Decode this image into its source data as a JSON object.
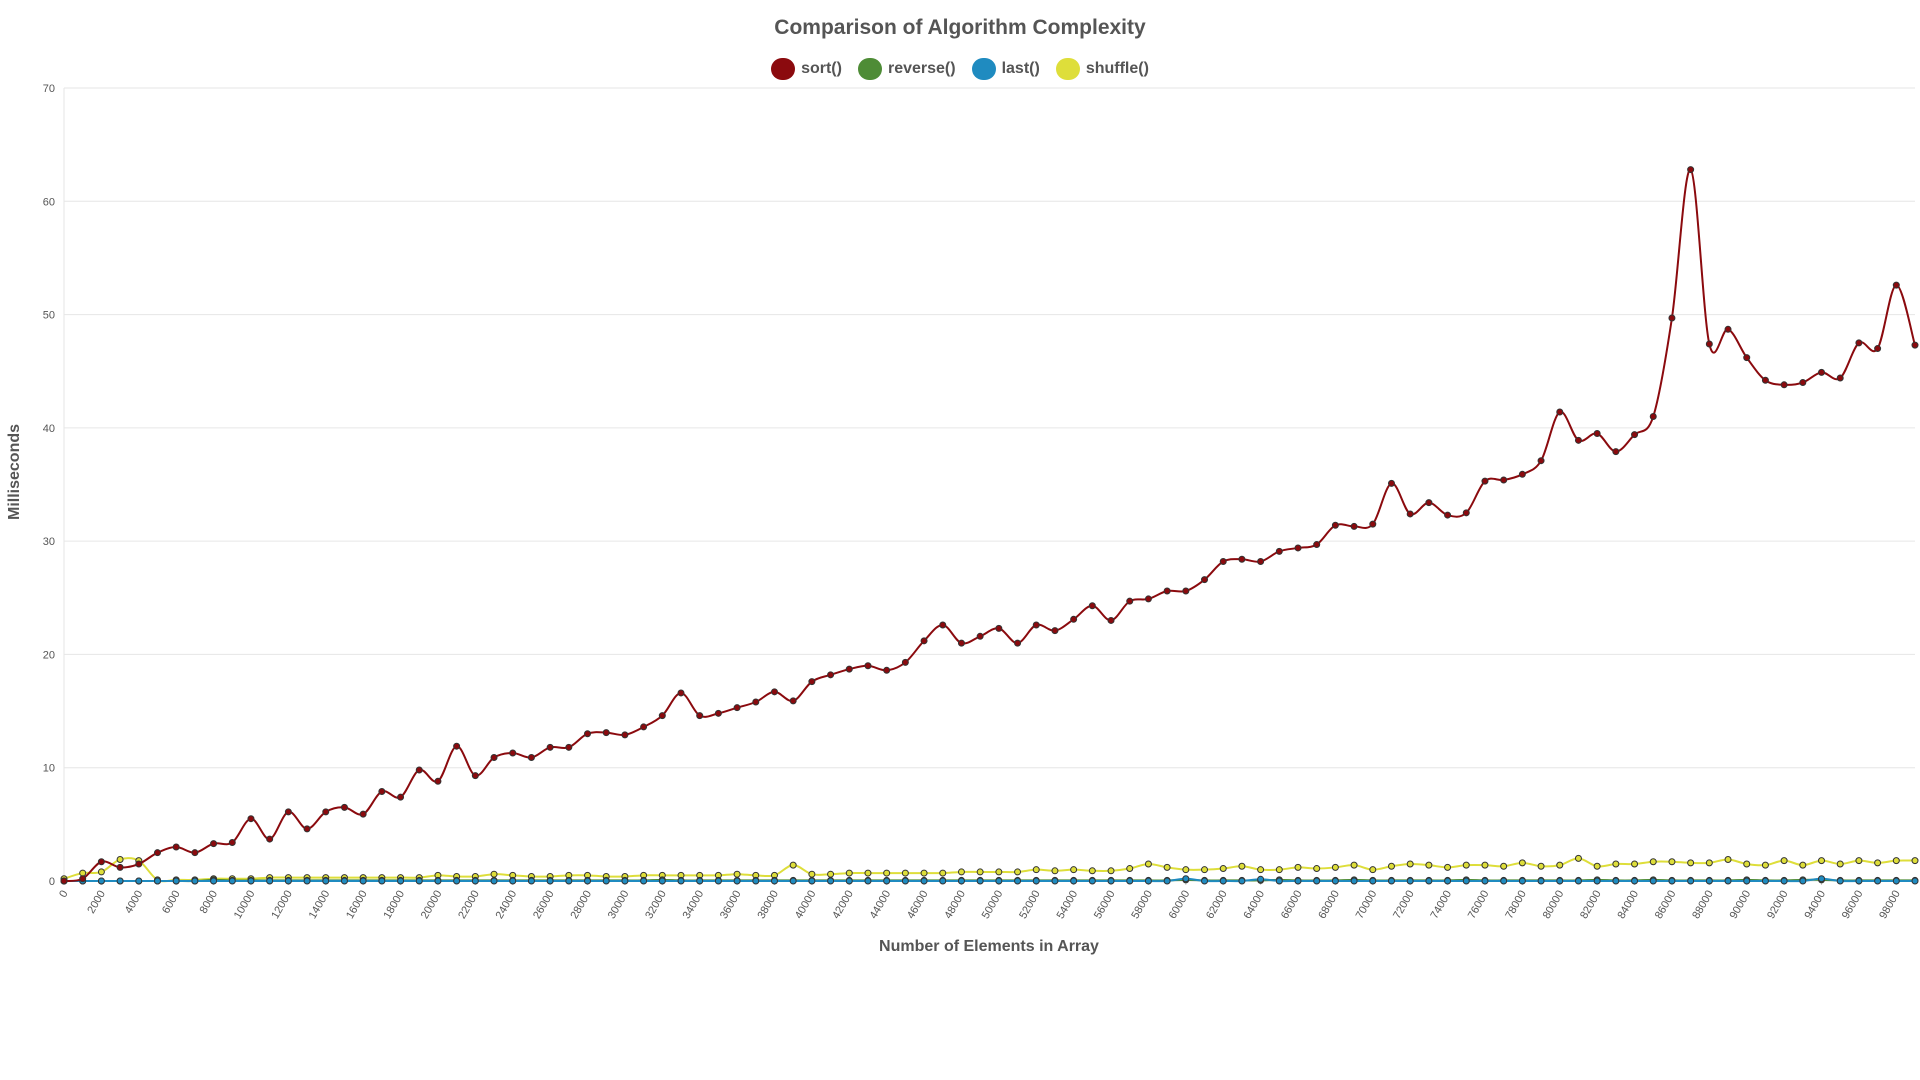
{
  "chart_data": {
    "type": "line",
    "title": "Comparison of Algorithm Complexity",
    "xlabel": "Number of Elements in Array",
    "ylabel": "Milliseconds",
    "ylim": [
      0,
      70
    ],
    "yticks": [
      "0",
      "10",
      "20",
      "30",
      "40",
      "50",
      "60",
      "70"
    ],
    "xticks": [
      "0",
      "2000",
      "4000",
      "6000",
      "8000",
      "10000",
      "12000",
      "14000",
      "16000",
      "18000",
      "20000",
      "22000",
      "24000",
      "26000",
      "28000",
      "30000",
      "32000",
      "34000",
      "36000",
      "38000",
      "40000",
      "42000",
      "44000",
      "46000",
      "48000",
      "50000",
      "52000",
      "54000",
      "56000",
      "58000",
      "60000",
      "62000",
      "64000",
      "66000",
      "68000",
      "70000",
      "72000",
      "74000",
      "76000",
      "78000",
      "80000",
      "82000",
      "84000",
      "86000",
      "88000",
      "90000",
      "92000",
      "94000",
      "96000",
      "98000"
    ],
    "x": [
      0,
      1000,
      2000,
      3000,
      4000,
      5000,
      6000,
      7000,
      8000,
      9000,
      10000,
      11000,
      12000,
      13000,
      14000,
      15000,
      16000,
      17000,
      18000,
      19000,
      20000,
      21000,
      22000,
      23000,
      24000,
      25000,
      26000,
      27000,
      28000,
      29000,
      30000,
      31000,
      32000,
      33000,
      34000,
      35000,
      36000,
      37000,
      38000,
      39000,
      40000,
      41000,
      42000,
      43000,
      44000,
      45000,
      46000,
      47000,
      48000,
      49000,
      50000,
      51000,
      52000,
      53000,
      54000,
      55000,
      56000,
      57000,
      58000,
      59000,
      60000,
      61000,
      62000,
      63000,
      64000,
      65000,
      66000,
      67000,
      68000,
      69000,
      70000,
      71000,
      72000,
      73000,
      74000,
      75000,
      76000,
      77000,
      78000,
      79000,
      80000,
      81000,
      82000,
      83000,
      84000,
      85000,
      86000,
      87000,
      88000,
      89000,
      90000,
      91000,
      92000,
      93000,
      94000,
      95000,
      96000,
      97000,
      98000,
      99000
    ],
    "grid": true,
    "legend_position": "top",
    "series": [
      {
        "name": "sort()",
        "color": "#8b0a0e",
        "values": [
          0,
          0.2,
          1.7,
          1.2,
          1.5,
          2.5,
          3.0,
          2.5,
          3.3,
          3.4,
          5.5,
          3.7,
          6.1,
          4.6,
          6.1,
          6.5,
          5.9,
          7.9,
          7.4,
          9.8,
          8.8,
          11.9,
          9.3,
          10.9,
          11.3,
          10.9,
          11.8,
          11.8,
          13.0,
          13.1,
          12.9,
          13.6,
          14.6,
          16.6,
          14.6,
          14.8,
          15.3,
          15.8,
          16.7,
          15.9,
          17.6,
          18.2,
          18.7,
          19.0,
          18.6,
          19.3,
          21.2,
          22.6,
          21.0,
          21.6,
          22.3,
          21.0,
          22.6,
          22.1,
          23.1,
          24.3,
          23.0,
          24.7,
          24.9,
          25.6,
          25.6,
          26.6,
          28.2,
          28.4,
          28.2,
          29.1,
          29.4,
          29.7,
          31.4,
          31.3,
          31.5,
          35.1,
          32.4,
          33.4,
          32.3,
          32.5,
          35.3,
          35.4,
          35.9,
          37.1,
          41.4,
          38.9,
          39.5,
          37.9,
          39.4,
          41.0,
          49.7,
          62.8,
          47.4,
          48.7,
          46.2,
          44.2,
          43.8,
          44.0,
          44.9,
          44.4,
          47.5,
          47.0,
          52.6,
          47.3
        ]
      },
      {
        "name": "reverse()",
        "color": "#4e8c36",
        "values": [
          0,
          0,
          0,
          0,
          0,
          0,
          0,
          0,
          0.1,
          0.05,
          0.05,
          0.05,
          0.05,
          0.05,
          0.05,
          0.05,
          0.05,
          0.05,
          0.05,
          0.05,
          0.05,
          0.05,
          0.05,
          0.05,
          0.05,
          0.05,
          0.05,
          0.05,
          0.05,
          0.05,
          0.05,
          0.05,
          0.1,
          0.05,
          0.05,
          0.05,
          0.05,
          0.05,
          0.05,
          0.05,
          0.05,
          0.05,
          0.05,
          0.05,
          0.05,
          0.05,
          0.05,
          0.05,
          0.05,
          0.05,
          0.05,
          0.05,
          0.05,
          0.05,
          0.05,
          0.05,
          0.05,
          0.05,
          0.05,
          0.05,
          0.1,
          0.05,
          0.05,
          0.05,
          0.05,
          0.1,
          0.05,
          0.05,
          0.05,
          0.1,
          0.05,
          0.05,
          0.05,
          0.05,
          0.05,
          0.1,
          0.05,
          0.05,
          0.05,
          0.05,
          0.05,
          0.05,
          0.1,
          0.05,
          0.05,
          0.1,
          0.05,
          0.05,
          0.05,
          0.05,
          0.1,
          0.05,
          0.05,
          0.1,
          0.1,
          0.05,
          0.05,
          0.05,
          0.05,
          0.05
        ]
      },
      {
        "name": "last()",
        "color": "#1f8bc0",
        "values": [
          0,
          0,
          0,
          0,
          0,
          0,
          0,
          0,
          0,
          0,
          0,
          0,
          0,
          0,
          0,
          0,
          0,
          0,
          0,
          0,
          0,
          0,
          0,
          0,
          0,
          0,
          0,
          0,
          0,
          0,
          0,
          0,
          0,
          0,
          0,
          0,
          0,
          0,
          0,
          0,
          0,
          0,
          0,
          0,
          0,
          0,
          0,
          0,
          0,
          0,
          0,
          0,
          0,
          0,
          0,
          0,
          0,
          0,
          0,
          0,
          0.2,
          0,
          0,
          0,
          0.15,
          0,
          0,
          0,
          0,
          0,
          0,
          0,
          0,
          0,
          0,
          0,
          0,
          0,
          0,
          0,
          0,
          0,
          0,
          0,
          0,
          0,
          0,
          0,
          0,
          0,
          0,
          0,
          0,
          0,
          0.2,
          0,
          0,
          0,
          0,
          0
        ]
      },
      {
        "name": "shuffle()",
        "color": "#dede3a",
        "values": [
          0.2,
          0.7,
          0.8,
          1.9,
          1.8,
          0.1,
          0.1,
          0.1,
          0.2,
          0.2,
          0.2,
          0.3,
          0.3,
          0.3,
          0.3,
          0.3,
          0.3,
          0.3,
          0.3,
          0.3,
          0.5,
          0.4,
          0.4,
          0.6,
          0.5,
          0.4,
          0.4,
          0.5,
          0.5,
          0.4,
          0.4,
          0.5,
          0.5,
          0.5,
          0.5,
          0.5,
          0.6,
          0.5,
          0.5,
          1.4,
          0.6,
          0.6,
          0.7,
          0.7,
          0.7,
          0.7,
          0.7,
          0.7,
          0.8,
          0.8,
          0.8,
          0.8,
          1.0,
          0.9,
          1.0,
          0.9,
          0.9,
          1.1,
          1.5,
          1.2,
          1.0,
          1.0,
          1.1,
          1.3,
          1.0,
          1.0,
          1.2,
          1.1,
          1.2,
          1.4,
          1.0,
          1.3,
          1.5,
          1.4,
          1.2,
          1.4,
          1.4,
          1.3,
          1.6,
          1.3,
          1.4,
          2.0,
          1.3,
          1.5,
          1.5,
          1.7,
          1.7,
          1.6,
          1.6,
          1.9,
          1.5,
          1.4,
          1.8,
          1.4,
          1.8,
          1.5,
          1.8,
          1.6,
          1.8,
          1.8
        ]
      }
    ]
  }
}
